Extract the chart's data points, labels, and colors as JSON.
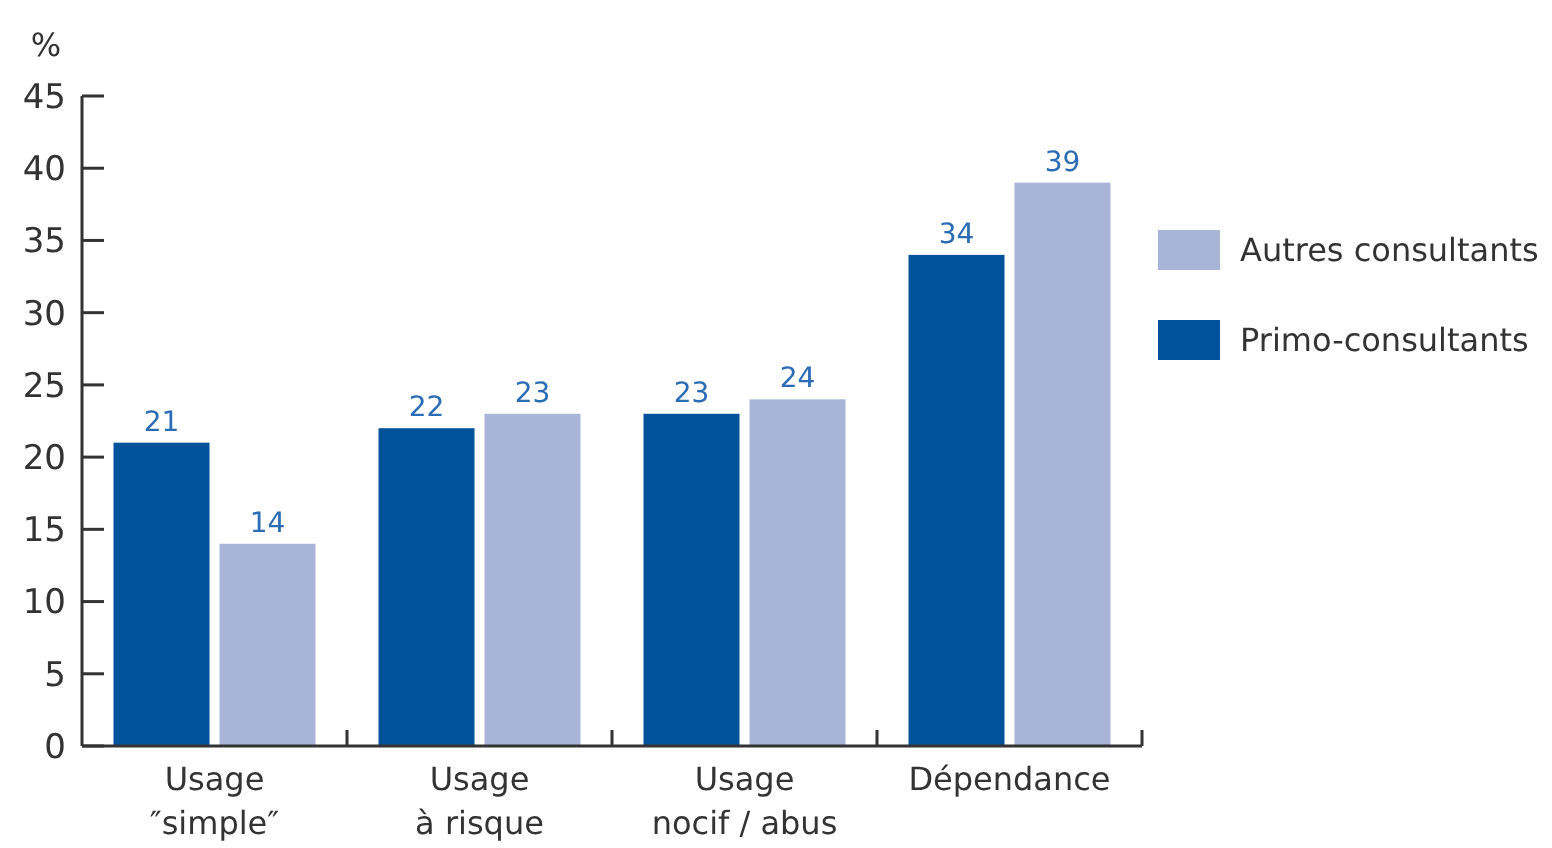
{
  "chart_data": {
    "type": "bar",
    "ylabel": "%",
    "categories": [
      "Usage\n″simple″",
      "Usage\nà risque",
      "Usage\nnocif / abus",
      "Dépendance"
    ],
    "series": [
      {
        "name": "Primo-consultants",
        "color": "#00529b",
        "values": [
          21,
          22,
          23,
          34
        ]
      },
      {
        "name": "Autres consultants",
        "color": "#a9b5d8",
        "values": [
          14,
          23,
          24,
          39
        ]
      }
    ],
    "ylim": [
      0,
      45
    ],
    "yticks": [
      0,
      5,
      10,
      15,
      20,
      25,
      30,
      35,
      40,
      45
    ],
    "data_labels": true,
    "legend": "right",
    "grid": false
  }
}
